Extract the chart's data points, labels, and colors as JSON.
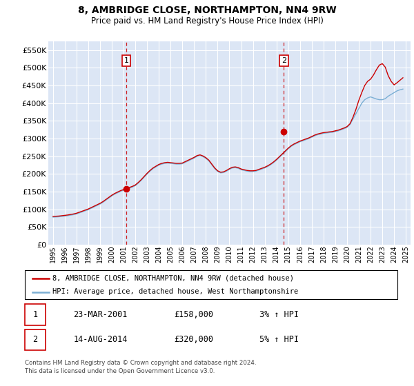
{
  "title": "8, AMBRIDGE CLOSE, NORTHAMPTON, NN4 9RW",
  "subtitle": "Price paid vs. HM Land Registry's House Price Index (HPI)",
  "plot_bg_color": "#dce6f5",
  "ylim": [
    0,
    575000
  ],
  "yticks": [
    0,
    50000,
    100000,
    150000,
    200000,
    250000,
    300000,
    350000,
    400000,
    450000,
    500000,
    550000
  ],
  "xlim_start": 1994.6,
  "xlim_end": 2025.4,
  "xticks": [
    1995,
    1996,
    1997,
    1998,
    1999,
    2000,
    2001,
    2002,
    2003,
    2004,
    2005,
    2006,
    2007,
    2008,
    2009,
    2010,
    2011,
    2012,
    2013,
    2014,
    2015,
    2016,
    2017,
    2018,
    2019,
    2020,
    2021,
    2022,
    2023,
    2024,
    2025
  ],
  "line1_color": "#cc0000",
  "line2_color": "#7bafd4",
  "line1_label": "8, AMBRIDGE CLOSE, NORTHAMPTON, NN4 9RW (detached house)",
  "line2_label": "HPI: Average price, detached house, West Northamptonshire",
  "purchase1_x": 2001.23,
  "purchase1_y": 158000,
  "purchase2_x": 2014.62,
  "purchase2_y": 320000,
  "purchase1_date": "23-MAR-2001",
  "purchase1_price": "£158,000",
  "purchase1_hpi": "3% ↑ HPI",
  "purchase2_date": "14-AUG-2014",
  "purchase2_price": "£320,000",
  "purchase2_hpi": "5% ↑ HPI",
  "footer": "Contains HM Land Registry data © Crown copyright and database right 2024.\nThis data is licensed under the Open Government Licence v3.0.",
  "hpi_data_x": [
    1995.0,
    1995.25,
    1995.5,
    1995.75,
    1996.0,
    1996.25,
    1996.5,
    1996.75,
    1997.0,
    1997.25,
    1997.5,
    1997.75,
    1998.0,
    1998.25,
    1998.5,
    1998.75,
    1999.0,
    1999.25,
    1999.5,
    1999.75,
    2000.0,
    2000.25,
    2000.5,
    2000.75,
    2001.0,
    2001.25,
    2001.5,
    2001.75,
    2002.0,
    2002.25,
    2002.5,
    2002.75,
    2003.0,
    2003.25,
    2003.5,
    2003.75,
    2004.0,
    2004.25,
    2004.5,
    2004.75,
    2005.0,
    2005.25,
    2005.5,
    2005.75,
    2006.0,
    2006.25,
    2006.5,
    2006.75,
    2007.0,
    2007.25,
    2007.5,
    2007.75,
    2008.0,
    2008.25,
    2008.5,
    2008.75,
    2009.0,
    2009.25,
    2009.5,
    2009.75,
    2010.0,
    2010.25,
    2010.5,
    2010.75,
    2011.0,
    2011.25,
    2011.5,
    2011.75,
    2012.0,
    2012.25,
    2012.5,
    2012.75,
    2013.0,
    2013.25,
    2013.5,
    2013.75,
    2014.0,
    2014.25,
    2014.5,
    2014.75,
    2015.0,
    2015.25,
    2015.5,
    2015.75,
    2016.0,
    2016.25,
    2016.5,
    2016.75,
    2017.0,
    2017.25,
    2017.5,
    2017.75,
    2018.0,
    2018.25,
    2018.5,
    2018.75,
    2019.0,
    2019.25,
    2019.5,
    2019.75,
    2020.0,
    2020.25,
    2020.5,
    2020.75,
    2021.0,
    2021.25,
    2021.5,
    2021.75,
    2022.0,
    2022.25,
    2022.5,
    2022.75,
    2023.0,
    2023.25,
    2023.5,
    2023.75,
    2024.0,
    2024.25,
    2024.5,
    2024.75
  ],
  "hpi_data_y": [
    78000,
    78500,
    79000,
    80000,
    81000,
    82000,
    83500,
    85000,
    87000,
    90000,
    93000,
    96000,
    99000,
    103000,
    107000,
    111000,
    115000,
    120000,
    126000,
    132000,
    138000,
    143000,
    147000,
    151000,
    154000,
    157000,
    160000,
    163000,
    167000,
    174000,
    182000,
    191000,
    200000,
    208000,
    215000,
    220000,
    225000,
    228000,
    230000,
    231000,
    230000,
    229000,
    228000,
    228000,
    229000,
    233000,
    237000,
    241000,
    245000,
    250000,
    252000,
    249000,
    244000,
    237000,
    226000,
    215000,
    207000,
    203000,
    204000,
    208000,
    213000,
    217000,
    218000,
    216000,
    212000,
    210000,
    208000,
    207000,
    207000,
    208000,
    211000,
    214000,
    217000,
    221000,
    226000,
    232000,
    239000,
    247000,
    255000,
    263000,
    271000,
    278000,
    283000,
    287000,
    291000,
    294000,
    297000,
    300000,
    304000,
    308000,
    311000,
    313000,
    315000,
    316000,
    317000,
    318000,
    320000,
    322000,
    325000,
    328000,
    332000,
    340000,
    355000,
    370000,
    385000,
    400000,
    410000,
    415000,
    418000,
    415000,
    412000,
    410000,
    410000,
    413000,
    420000,
    425000,
    430000,
    435000,
    438000,
    440000
  ],
  "house_data_x": [
    1995.0,
    1995.25,
    1995.5,
    1995.75,
    1996.0,
    1996.25,
    1996.5,
    1996.75,
    1997.0,
    1997.25,
    1997.5,
    1997.75,
    1998.0,
    1998.25,
    1998.5,
    1998.75,
    1999.0,
    1999.25,
    1999.5,
    1999.75,
    2000.0,
    2000.25,
    2000.5,
    2000.75,
    2001.0,
    2001.25,
    2001.5,
    2001.75,
    2002.0,
    2002.25,
    2002.5,
    2002.75,
    2003.0,
    2003.25,
    2003.5,
    2003.75,
    2004.0,
    2004.25,
    2004.5,
    2004.75,
    2005.0,
    2005.25,
    2005.5,
    2005.75,
    2006.0,
    2006.25,
    2006.5,
    2006.75,
    2007.0,
    2007.25,
    2007.5,
    2007.75,
    2008.0,
    2008.25,
    2008.5,
    2008.75,
    2009.0,
    2009.25,
    2009.5,
    2009.75,
    2010.0,
    2010.25,
    2010.5,
    2010.75,
    2011.0,
    2011.25,
    2011.5,
    2011.75,
    2012.0,
    2012.25,
    2012.5,
    2012.75,
    2013.0,
    2013.25,
    2013.5,
    2013.75,
    2014.0,
    2014.25,
    2014.5,
    2014.75,
    2015.0,
    2015.25,
    2015.5,
    2015.75,
    2016.0,
    2016.25,
    2016.5,
    2016.75,
    2017.0,
    2017.25,
    2017.5,
    2017.75,
    2018.0,
    2018.25,
    2018.5,
    2018.75,
    2019.0,
    2019.25,
    2019.5,
    2019.75,
    2020.0,
    2020.25,
    2020.5,
    2020.75,
    2021.0,
    2021.25,
    2021.5,
    2021.75,
    2022.0,
    2022.25,
    2022.5,
    2022.75,
    2023.0,
    2023.25,
    2023.5,
    2023.75,
    2024.0,
    2024.25,
    2024.5,
    2024.75
  ],
  "house_data_y": [
    80000,
    80500,
    81000,
    82000,
    83000,
    84000,
    85500,
    87000,
    89000,
    92000,
    95000,
    98000,
    101000,
    105000,
    109000,
    113000,
    117000,
    122000,
    128000,
    134000,
    140000,
    145000,
    149000,
    153000,
    156000,
    159000,
    162000,
    165000,
    169000,
    176000,
    184000,
    193000,
    202000,
    210000,
    217000,
    222000,
    227000,
    230000,
    232000,
    233000,
    232000,
    231000,
    230000,
    230000,
    231000,
    235000,
    239000,
    243000,
    247000,
    252000,
    254000,
    251000,
    246000,
    239000,
    228000,
    217000,
    209000,
    205000,
    206000,
    210000,
    215000,
    219000,
    220000,
    218000,
    214000,
    212000,
    210000,
    209000,
    209000,
    210000,
    213000,
    216000,
    219000,
    223000,
    228000,
    234000,
    241000,
    249000,
    257000,
    265000,
    273000,
    280000,
    285000,
    289000,
    293000,
    296000,
    299000,
    302000,
    306000,
    310000,
    313000,
    315000,
    317000,
    318000,
    319000,
    320000,
    322000,
    324000,
    327000,
    330000,
    334000,
    342000,
    360000,
    382000,
    408000,
    430000,
    450000,
    462000,
    468000,
    480000,
    495000,
    508000,
    512000,
    502000,
    478000,
    462000,
    452000,
    458000,
    465000,
    472000
  ]
}
